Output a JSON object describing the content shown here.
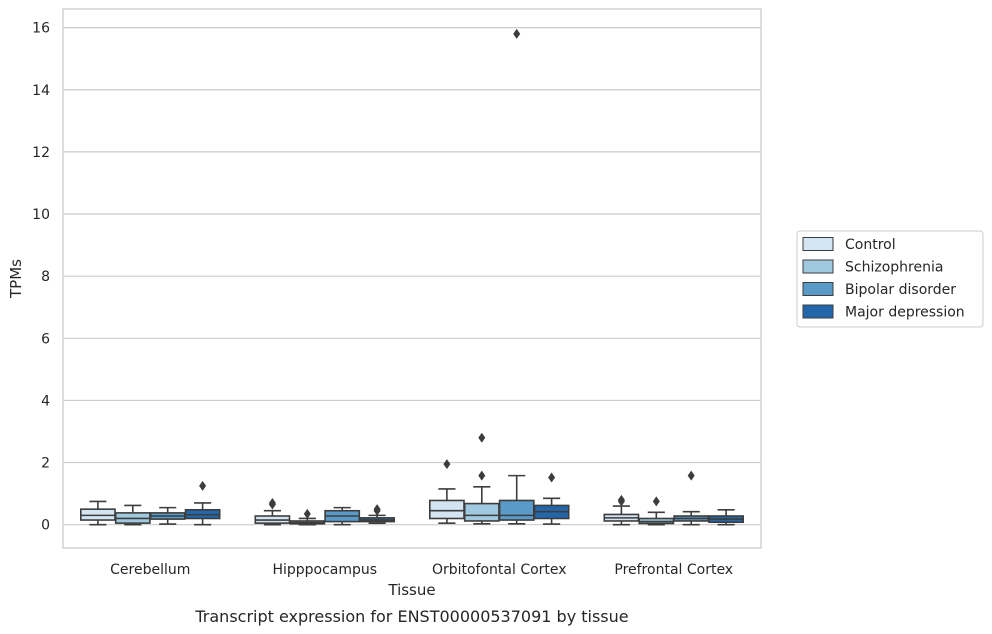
{
  "chart_data": {
    "type": "box",
    "caption": "Transcript expression for ENST00000537091 by tissue",
    "xlabel": "Tissue",
    "ylabel": "TPMs",
    "ylim": [
      -0.75,
      16.6
    ],
    "yticks": [
      0,
      2,
      4,
      6,
      8,
      10,
      12,
      14,
      16
    ],
    "grid": "horizontal",
    "legend_position": "right",
    "categories": [
      "Cerebellum",
      "Hipppocampus",
      "Orbitofontal Cortex",
      "Prefrontal Cortex"
    ],
    "series": [
      {
        "name": "Control",
        "color": "#d3e4f3",
        "boxes": [
          {
            "whislo": 0.0,
            "q1": 0.15,
            "med": 0.3,
            "q3": 0.5,
            "whishi": 0.75,
            "fliers": []
          },
          {
            "whislo": 0.0,
            "q1": 0.05,
            "med": 0.15,
            "q3": 0.28,
            "whishi": 0.45,
            "fliers": [
              0.65,
              0.7
            ]
          },
          {
            "whislo": 0.05,
            "q1": 0.2,
            "med": 0.45,
            "q3": 0.78,
            "whishi": 1.15,
            "fliers": [
              1.95
            ]
          },
          {
            "whislo": 0.0,
            "q1": 0.12,
            "med": 0.22,
            "q3": 0.33,
            "whishi": 0.6,
            "fliers": [
              0.75,
              0.8
            ]
          }
        ]
      },
      {
        "name": "Schizophrenia",
        "color": "#a0c9e0",
        "boxes": [
          {
            "whislo": 0.0,
            "q1": 0.05,
            "med": 0.2,
            "q3": 0.38,
            "whishi": 0.62,
            "fliers": []
          },
          {
            "whislo": 0.0,
            "q1": 0.03,
            "med": 0.07,
            "q3": 0.12,
            "whishi": 0.2,
            "fliers": [
              0.35
            ]
          },
          {
            "whislo": 0.03,
            "q1": 0.12,
            "med": 0.3,
            "q3": 0.68,
            "whishi": 1.22,
            "fliers": [
              1.58,
              2.8
            ]
          },
          {
            "whislo": 0.0,
            "q1": 0.04,
            "med": 0.1,
            "q3": 0.2,
            "whishi": 0.4,
            "fliers": [
              0.75
            ]
          }
        ]
      },
      {
        "name": "Bipolar disorder",
        "color": "#5a9ac8",
        "boxes": [
          {
            "whislo": 0.02,
            "q1": 0.18,
            "med": 0.28,
            "q3": 0.38,
            "whishi": 0.55,
            "fliers": []
          },
          {
            "whislo": 0.0,
            "q1": 0.1,
            "med": 0.28,
            "q3": 0.45,
            "whishi": 0.55,
            "fliers": []
          },
          {
            "whislo": 0.03,
            "q1": 0.15,
            "med": 0.3,
            "q3": 0.78,
            "whishi": 1.58,
            "fliers": [
              15.8
            ]
          },
          {
            "whislo": 0.0,
            "q1": 0.12,
            "med": 0.2,
            "q3": 0.28,
            "whishi": 0.42,
            "fliers": [
              1.58
            ]
          }
        ]
      },
      {
        "name": "Major depression",
        "color": "#2367aa",
        "boxes": [
          {
            "whislo": 0.0,
            "q1": 0.2,
            "med": 0.32,
            "q3": 0.48,
            "whishi": 0.7,
            "fliers": [
              1.25
            ]
          },
          {
            "whislo": 0.05,
            "q1": 0.1,
            "med": 0.15,
            "q3": 0.22,
            "whishi": 0.3,
            "fliers": [
              0.45,
              0.5
            ]
          },
          {
            "whislo": 0.02,
            "q1": 0.2,
            "med": 0.42,
            "q3": 0.62,
            "whishi": 0.85,
            "fliers": [
              1.52
            ]
          },
          {
            "whislo": 0.0,
            "q1": 0.08,
            "med": 0.18,
            "q3": 0.28,
            "whishi": 0.48,
            "fliers": []
          }
        ]
      }
    ]
  }
}
